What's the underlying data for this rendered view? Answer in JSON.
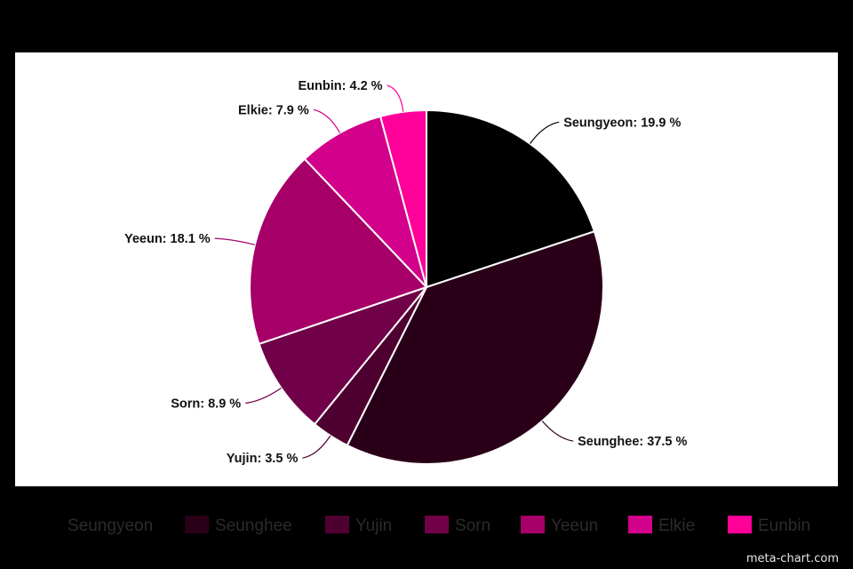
{
  "chart_data": {
    "type": "pie",
    "title": "",
    "slices": [
      {
        "name": "Seungyeon",
        "value": 19.9,
        "label": "Seungyeon: 19.9 %",
        "color": "#000000"
      },
      {
        "name": "Seunghee",
        "value": 37.5,
        "label": "Seunghee: 37.5 %",
        "color": "#2a0018"
      },
      {
        "name": "Yujin",
        "value": 3.5,
        "label": "Yujin: 3.5 %",
        "color": "#4e0031"
      },
      {
        "name": "Sorn",
        "value": 8.9,
        "label": "Sorn: 8.9 %",
        "color": "#700048"
      },
      {
        "name": "Yeeun",
        "value": 18.1,
        "label": "Yeeun: 18.1 %",
        "color": "#a60068"
      },
      {
        "name": "Elkie",
        "value": 7.9,
        "label": "Elkie: 7.9 %",
        "color": "#d2008a"
      },
      {
        "name": "Eunbin",
        "value": 4.2,
        "label": "Eunbin: 4.2 %",
        "color": "#ff0099"
      }
    ],
    "legend_position": "bottom"
  },
  "watermark": "meta-chart.com"
}
